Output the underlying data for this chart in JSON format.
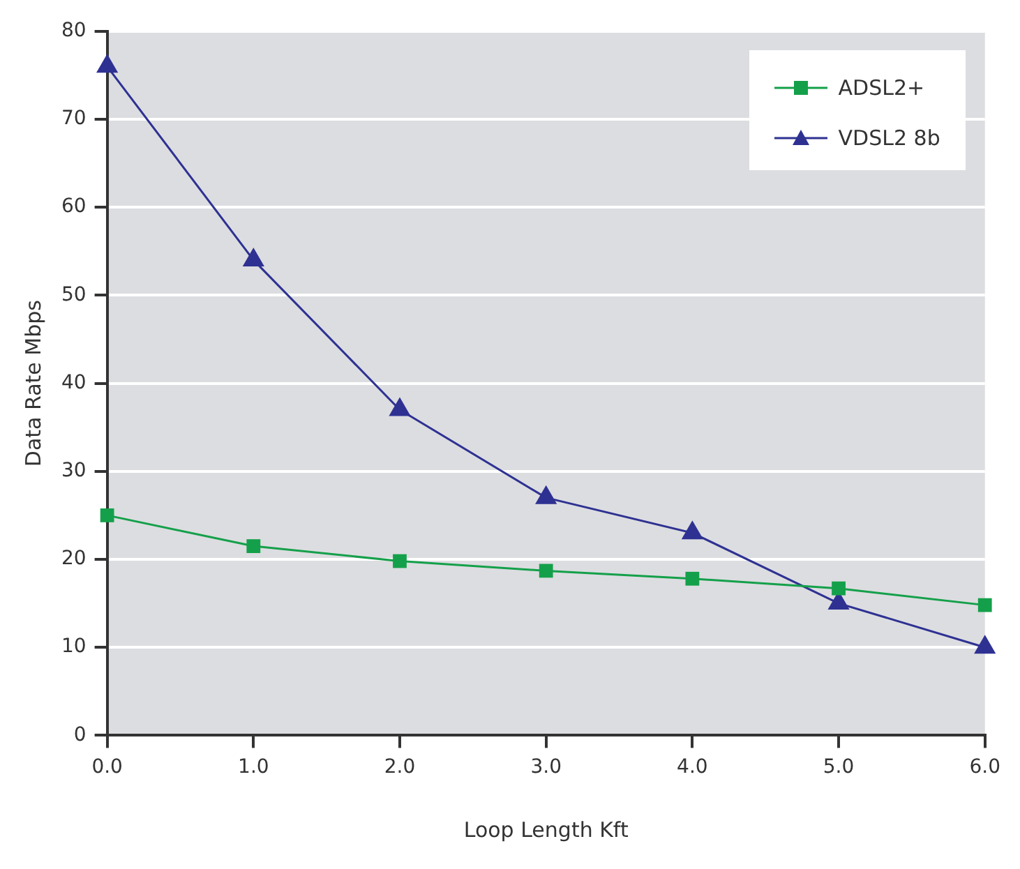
{
  "chart_data": {
    "type": "line",
    "xlabel": "Loop Length Kft",
    "ylabel": "Data Rate Mbps",
    "x": [
      0,
      1,
      2,
      3,
      4,
      5,
      6
    ],
    "series": [
      {
        "name": "ADSL2+",
        "color": "#14a04a",
        "marker": "square",
        "values": [
          25,
          21.5,
          19.8,
          18.7,
          17.8,
          16.7,
          14.8
        ]
      },
      {
        "name": "VDSL2 8b",
        "color": "#2e3192",
        "marker": "triangle",
        "values": [
          76,
          54,
          37,
          27,
          23,
          15,
          10
        ]
      }
    ],
    "xlim": [
      0,
      6
    ],
    "xticks": [
      {
        "value": 0,
        "label": "0.0"
      },
      {
        "value": 1,
        "label": "1.0"
      },
      {
        "value": 2,
        "label": "2.0"
      },
      {
        "value": 3,
        "label": "3.0"
      },
      {
        "value": 4,
        "label": "4.0"
      },
      {
        "value": 5,
        "label": "5.0"
      },
      {
        "value": 6,
        "label": "6.0"
      }
    ],
    "ylim": [
      0,
      80
    ],
    "yticks": [
      0,
      10,
      20,
      30,
      40,
      50,
      60,
      70,
      80
    ],
    "grid": "y",
    "legend": "top right",
    "line_style": "solid"
  }
}
